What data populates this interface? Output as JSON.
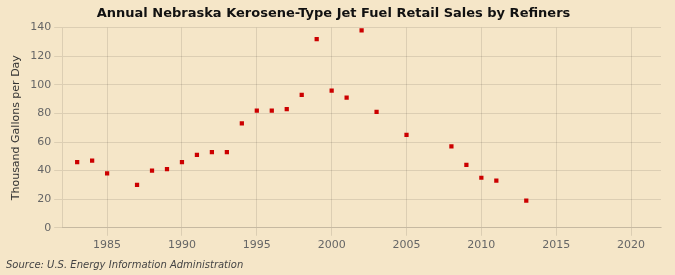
{
  "chart_data": {
    "type": "scatter",
    "title": "Annual Nebraska Kerosene-Type Jet Fuel Retail Sales by Refiners",
    "ylabel": "Thousand Gallons per Day",
    "annotations": [
      "Source: U.S. Energy Information Administration"
    ],
    "x": [
      1983,
      1984,
      1985,
      1987,
      1988,
      1989,
      1990,
      1991,
      1992,
      1993,
      1994,
      1995,
      1996,
      1997,
      1998,
      1999,
      2000,
      2001,
      2002,
      2003,
      2005,
      2008,
      2009,
      2010,
      2011,
      2013
    ],
    "values": [
      46,
      47,
      38,
      30,
      40,
      41,
      46,
      51,
      53,
      53,
      73,
      82,
      82,
      83,
      93,
      132,
      96,
      91,
      138,
      81,
      65,
      57,
      44,
      35,
      33,
      19
    ],
    "color": "#cc0000",
    "marker": "square",
    "xlim": [
      1982,
      2022
    ],
    "ylim": [
      0,
      140
    ],
    "xticks": [
      1985,
      1990,
      1995,
      2000,
      2005,
      2010,
      2015,
      2020
    ],
    "yticks": [
      0,
      20,
      40,
      60,
      80,
      100,
      120,
      140
    ],
    "grid": true
  }
}
